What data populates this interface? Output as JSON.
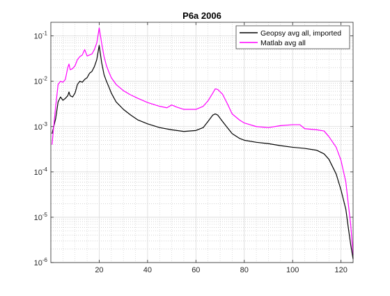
{
  "chart_data": {
    "type": "line",
    "title": "P6a 2006",
    "xlabel": "",
    "ylabel": "",
    "xlim": [
      0,
      125
    ],
    "ylim": [
      1e-06,
      0.2
    ],
    "yscale": "log",
    "grid": true,
    "minor_grid": true,
    "legend_position": "top-right",
    "x_ticks": [
      20,
      40,
      60,
      80,
      100,
      120
    ],
    "x_tick_labels": [
      "20",
      "40",
      "60",
      "80",
      "100",
      "120"
    ],
    "y_ticks": [
      1e-06,
      1e-05,
      0.0001,
      0.001,
      0.01,
      0.1
    ],
    "y_tick_labels": [
      {
        "base": "10",
        "exp": "-6"
      },
      {
        "base": "10",
        "exp": "-5"
      },
      {
        "base": "10",
        "exp": "-4"
      },
      {
        "base": "10",
        "exp": "-3"
      },
      {
        "base": "10",
        "exp": "-2"
      },
      {
        "base": "10",
        "exp": "-1"
      }
    ],
    "series": [
      {
        "name": "Geopsy avg all, imported",
        "color": "#000000",
        "x": [
          0.5,
          1,
          2,
          3,
          4,
          5,
          6,
          7,
          7.5,
          8,
          9,
          10,
          11,
          12,
          13,
          14,
          15,
          16,
          17,
          18,
          19,
          20,
          21,
          22,
          23,
          24,
          25,
          27,
          30,
          33,
          36,
          40,
          45,
          50,
          55,
          60,
          63,
          65,
          67,
          68,
          69,
          71,
          73,
          75,
          78,
          80,
          85,
          90,
          95,
          100,
          105,
          110,
          113,
          115,
          118,
          120,
          122,
          123,
          124,
          125
        ],
        "y": [
          0.0007,
          0.0009,
          0.0015,
          0.0035,
          0.0045,
          0.0038,
          0.0042,
          0.0048,
          0.0058,
          0.0048,
          0.0045,
          0.0055,
          0.0085,
          0.01,
          0.0095,
          0.011,
          0.012,
          0.015,
          0.0165,
          0.021,
          0.03,
          0.062,
          0.026,
          0.014,
          0.01,
          0.0075,
          0.0055,
          0.0035,
          0.0024,
          0.0018,
          0.0014,
          0.00115,
          0.00095,
          0.00085,
          0.00078,
          0.00082,
          0.00095,
          0.0013,
          0.0018,
          0.0019,
          0.0018,
          0.0013,
          0.00095,
          0.0007,
          0.00055,
          0.0005,
          0.00045,
          0.00042,
          0.00038,
          0.00035,
          0.00033,
          0.0003,
          0.00025,
          0.00019,
          9e-05,
          4e-05,
          1.5e-05,
          6e-06,
          2.5e-06,
          1.2e-06
        ]
      },
      {
        "name": "Matlab avg all",
        "color": "#ff00ff",
        "x": [
          0.5,
          1,
          2,
          3,
          4,
          5,
          6,
          7,
          7.5,
          8,
          9,
          10,
          11,
          12,
          13,
          14,
          15,
          16,
          17,
          18,
          19,
          20,
          21,
          22,
          23,
          24,
          25,
          27,
          30,
          33,
          36,
          40,
          45,
          48,
          50,
          52,
          55,
          60,
          63,
          65,
          67,
          68,
          69,
          71,
          73,
          75,
          78,
          80,
          85,
          90,
          95,
          100,
          103,
          105,
          110,
          113,
          115,
          118,
          120,
          122,
          123,
          124,
          125
        ],
        "y": [
          0.0004,
          0.0008,
          0.0028,
          0.0085,
          0.01,
          0.0095,
          0.011,
          0.02,
          0.024,
          0.018,
          0.019,
          0.022,
          0.03,
          0.035,
          0.038,
          0.05,
          0.036,
          0.038,
          0.04,
          0.05,
          0.07,
          0.15,
          0.07,
          0.035,
          0.022,
          0.016,
          0.012,
          0.0085,
          0.0062,
          0.005,
          0.0042,
          0.0034,
          0.0028,
          0.0026,
          0.003,
          0.0027,
          0.0024,
          0.0024,
          0.0028,
          0.0037,
          0.0055,
          0.0068,
          0.0066,
          0.0052,
          0.0032,
          0.0019,
          0.0014,
          0.0012,
          0.001,
          0.00095,
          0.00105,
          0.0011,
          0.0011,
          0.0009,
          0.00085,
          0.0008,
          0.0006,
          0.00035,
          0.00018,
          6e-05,
          2e-05,
          7e-06,
          1.5e-06
        ]
      }
    ]
  }
}
